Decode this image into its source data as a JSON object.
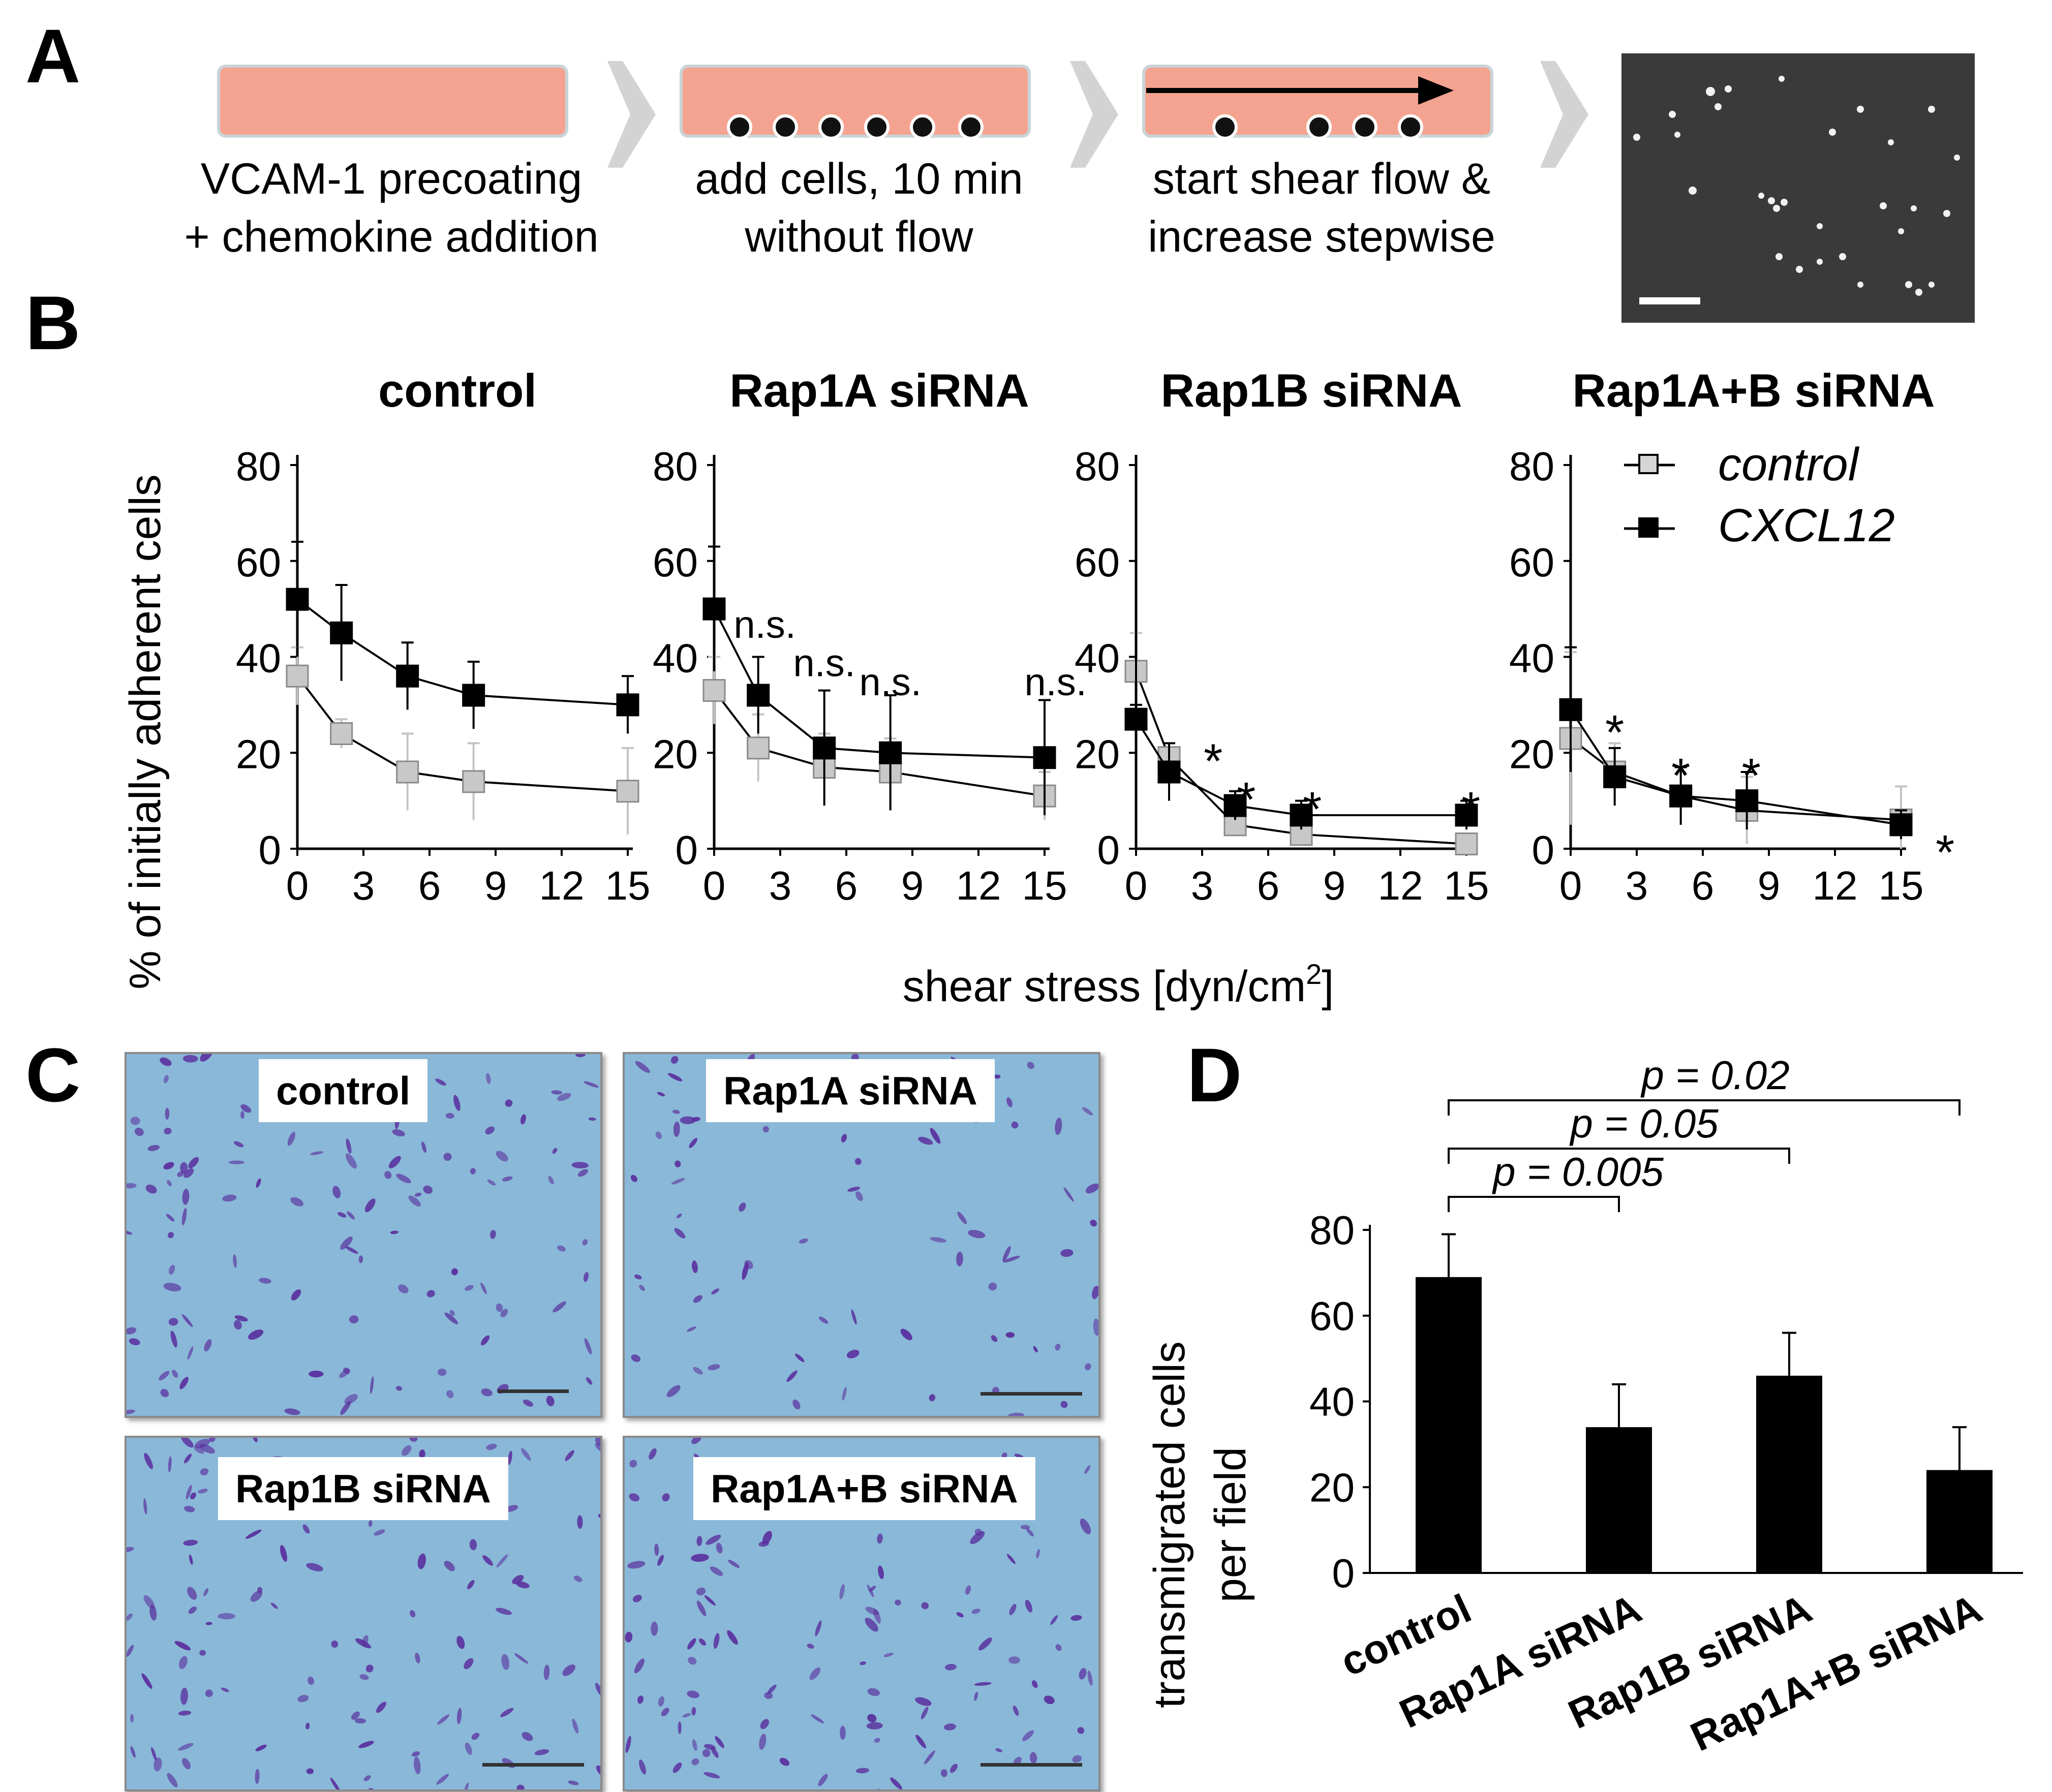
{
  "panel_letters": {
    "a": "A",
    "b": "B",
    "c": "C",
    "d": "D"
  },
  "panel_a": {
    "steps": [
      {
        "line1": "VCAM-1 precoating",
        "line2": "+ chemokine addition"
      },
      {
        "line1": "add cells, 10 min",
        "line2": "without flow"
      },
      {
        "line1": "start shear flow &",
        "line2": "increase stepwise"
      }
    ],
    "colors": {
      "channel": "#f4a391",
      "arrow": "#d3d3d3",
      "micrograph": "#3a3a3a"
    }
  },
  "panel_c": {
    "labels": [
      "control",
      "Rap1A siRNA",
      "Rap1B siRNA",
      "Rap1A+B siRNA"
    ],
    "colors": {
      "background": "#8ab8d8",
      "cells": "#5a2f9e"
    }
  },
  "chart_data": [
    {
      "type": "line",
      "title": "control",
      "xlabel": "shear stress [dyn/cm2]",
      "ylabel": "% of initially adherent cells",
      "xlim": [
        0,
        15
      ],
      "ylim": [
        0,
        80
      ],
      "xticks": [
        "0",
        "3",
        "6",
        "9",
        "12",
        "15"
      ],
      "yticks": [
        "0",
        "20",
        "40",
        "60",
        "80"
      ],
      "series": [
        {
          "name": "control",
          "color": "#b3b3b3",
          "x": [
            0,
            2,
            5,
            8,
            15
          ],
          "y": [
            36,
            24,
            16,
            14,
            12
          ],
          "err": [
            6,
            3,
            8,
            8,
            9
          ]
        },
        {
          "name": "CXCL12",
          "color": "#000000",
          "x": [
            0,
            2,
            5,
            8,
            15
          ],
          "y": [
            52,
            45,
            36,
            32,
            30
          ],
          "err": [
            12,
            10,
            7,
            7,
            6
          ]
        }
      ],
      "annotations": []
    },
    {
      "type": "line",
      "title": "Rap1A siRNA",
      "xlim": [
        0,
        15
      ],
      "ylim": [
        0,
        80
      ],
      "xticks": [
        "0",
        "3",
        "6",
        "9",
        "12",
        "15"
      ],
      "yticks": [
        "0",
        "20",
        "40",
        "60",
        "80"
      ],
      "series": [
        {
          "name": "control",
          "color": "#b3b3b3",
          "x": [
            0,
            2,
            5,
            8,
            15
          ],
          "y": [
            33,
            21,
            17,
            16,
            11
          ],
          "err": [
            7,
            7,
            7,
            7,
            5
          ]
        },
        {
          "name": "CXCL12",
          "color": "#000000",
          "x": [
            0,
            2,
            5,
            8,
            15
          ],
          "y": [
            50,
            32,
            21,
            20,
            19
          ],
          "err": [
            13,
            8,
            12,
            12,
            12
          ]
        }
      ],
      "annotations": [
        {
          "text": "n.s.",
          "x": 2.3,
          "y": 44
        },
        {
          "text": "n.s.",
          "x": 5,
          "y": 36
        },
        {
          "text": "n.s.",
          "x": 8,
          "y": 32
        },
        {
          "text": "n.s.",
          "x": 15.5,
          "y": 32
        }
      ]
    },
    {
      "type": "line",
      "title": "Rap1B siRNA",
      "xlim": [
        0,
        15
      ],
      "ylim": [
        0,
        80
      ],
      "xticks": [
        "0",
        "3",
        "6",
        "9",
        "12",
        "15"
      ],
      "yticks": [
        "0",
        "20",
        "40",
        "60",
        "80"
      ],
      "series": [
        {
          "name": "control",
          "color": "#b3b3b3",
          "x": [
            0,
            1.5,
            4.5,
            7.5,
            15
          ],
          "y": [
            37,
            19,
            5,
            3,
            1
          ],
          "err": [
            8,
            3,
            2,
            2,
            1
          ]
        },
        {
          "name": "CXCL12",
          "color": "#000000",
          "x": [
            0,
            1.5,
            4.5,
            7.5,
            15
          ],
          "y": [
            27,
            16,
            9,
            7,
            7
          ],
          "err": [
            3,
            6,
            3,
            3,
            3
          ]
        }
      ],
      "annotations": [
        {
          "text": "*",
          "x": 3.5,
          "y": 19
        },
        {
          "text": "*",
          "x": 5,
          "y": 11
        },
        {
          "text": "*",
          "x": 8,
          "y": 9
        },
        {
          "text": "*",
          "x": 15.2,
          "y": 9
        }
      ]
    },
    {
      "type": "line",
      "title": "Rap1A+B siRNA",
      "xlim": [
        0,
        15
      ],
      "ylim": [
        0,
        80
      ],
      "xticks": [
        "0",
        "3",
        "6",
        "9",
        "12",
        "15"
      ],
      "yticks": [
        "0",
        "20",
        "40",
        "60",
        "80"
      ],
      "series": [
        {
          "name": "control",
          "color": "#b3b3b3",
          "x": [
            0,
            2,
            5,
            8,
            15
          ],
          "y": [
            23,
            16,
            11,
            8,
            6
          ],
          "err": [
            18,
            6,
            6,
            7,
            7
          ]
        },
        {
          "name": "CXCL12",
          "color": "#000000",
          "x": [
            0,
            2,
            5,
            8,
            15
          ],
          "y": [
            29,
            15,
            11,
            10,
            5
          ],
          "err": [
            13,
            6,
            6,
            6,
            3
          ]
        }
      ],
      "annotations": [
        {
          "text": "*",
          "x": 2,
          "y": 25
        },
        {
          "text": "*",
          "x": 5,
          "y": 16
        },
        {
          "text": "*",
          "x": 8.2,
          "y": 16
        },
        {
          "text": "*",
          "x": 17,
          "y": 0
        }
      ]
    },
    {
      "type": "bar",
      "ylabel_line1": "transmigrated cells",
      "ylabel_line2": "per field",
      "categories": [
        "control",
        "Rap1A siRNA",
        "Rap1B siRNA",
        "Rap1A+B siRNA"
      ],
      "values": [
        69,
        34,
        46,
        24
      ],
      "errors": [
        10,
        10,
        10,
        10
      ],
      "ylim": [
        0,
        80
      ],
      "yticks": [
        "0",
        "20",
        "40",
        "60",
        "80"
      ],
      "significance": [
        {
          "from": 0,
          "to": 1,
          "label": "p = 0.005"
        },
        {
          "from": 0,
          "to": 2,
          "label": "p = 0.05"
        },
        {
          "from": 0,
          "to": 3,
          "label": "p = 0.02"
        }
      ]
    }
  ],
  "legend": {
    "control": "control",
    "cxcl12": "CXCL12"
  },
  "shared_xlabel": {
    "main": "shear stress [dyn/cm",
    "sup": "2",
    "end": "]"
  }
}
